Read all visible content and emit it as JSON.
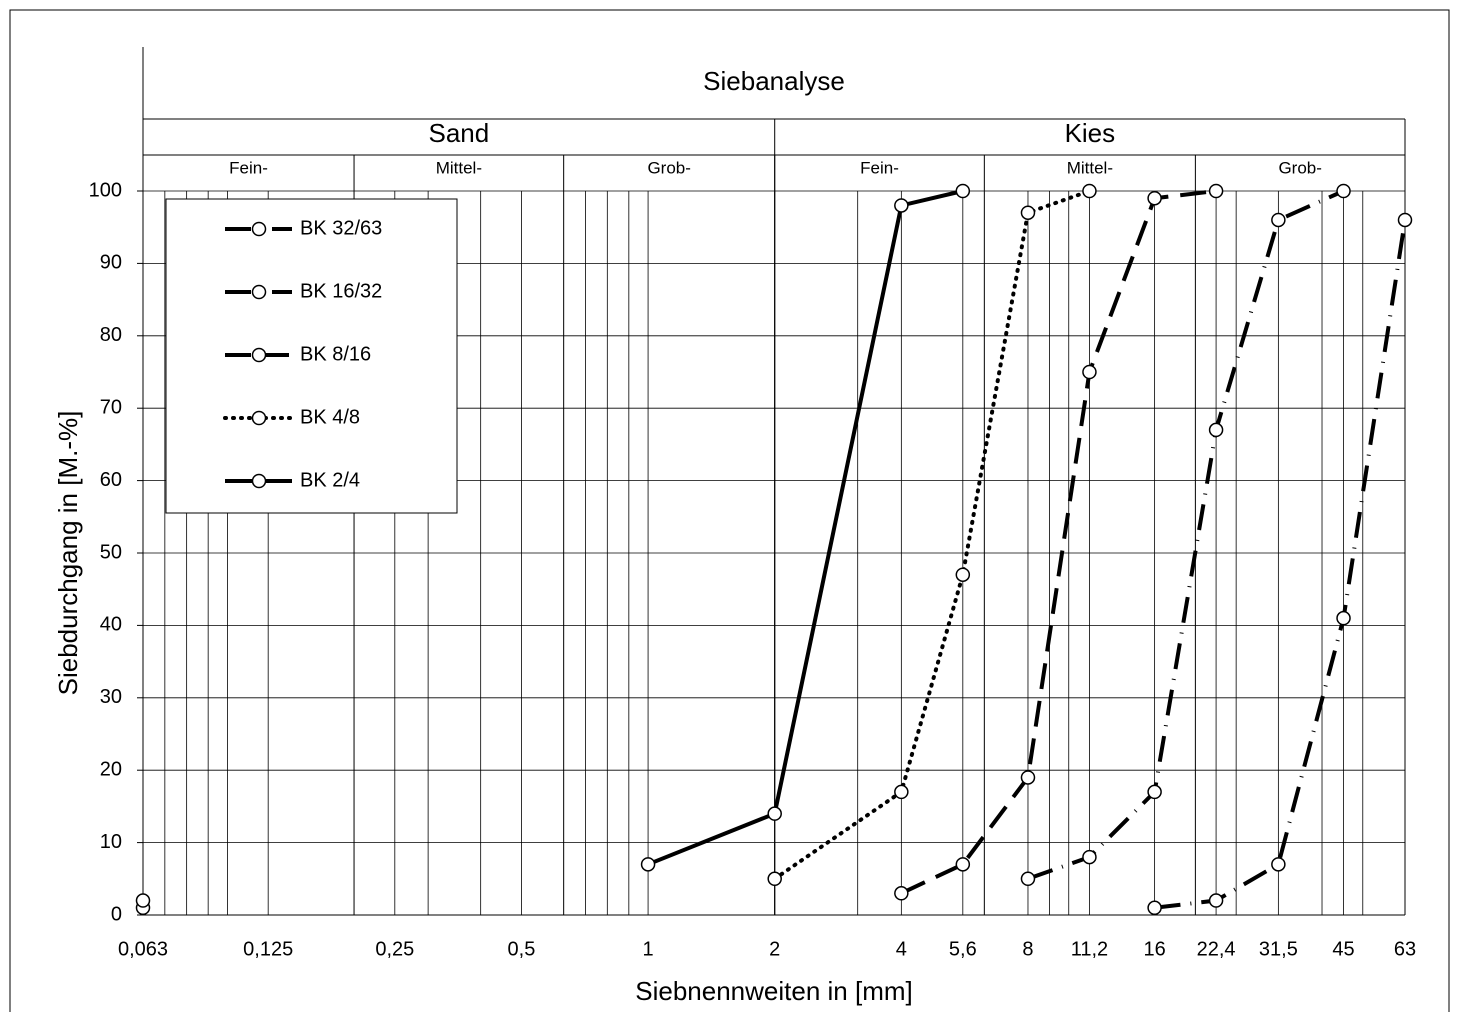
{
  "chart_data": {
    "type": "line",
    "title": "Siebanalyse",
    "xlabel": "Siebnennweiten in [mm]",
    "ylabel": "Siebdurchgang in [M.-%]",
    "xscale": "log",
    "xlim": [
      0.063,
      63
    ],
    "ylim": [
      0,
      100
    ],
    "xticks": [
      {
        "value": 0.063,
        "label": "0,063"
      },
      {
        "value": 0.125,
        "label": "0,125"
      },
      {
        "value": 0.25,
        "label": "0,25"
      },
      {
        "value": 0.5,
        "label": "0,5"
      },
      1,
      2,
      4,
      {
        "value": 5.6,
        "label": "5,6"
      },
      8,
      {
        "value": 11.2,
        "label": "11,2"
      },
      16,
      {
        "value": 22.4,
        "label": "22,4"
      },
      {
        "value": 31.5,
        "label": "31,5"
      },
      45,
      63
    ],
    "yticks": [
      0,
      10,
      20,
      30,
      40,
      50,
      60,
      70,
      80,
      90,
      100
    ],
    "xgrid_minor": [
      0.071,
      0.08,
      0.09,
      0.1,
      0.3,
      0.4,
      0.71,
      0.8,
      0.9,
      3.15,
      9,
      10,
      25,
      40,
      50
    ],
    "grid": true,
    "groups": [
      {
        "label": "Sand",
        "from": 0.063,
        "to": 2
      },
      {
        "label": "Kies",
        "from": 2,
        "to": 63
      }
    ],
    "fractions": [
      {
        "label": "Fein-",
        "from": 0.063,
        "to": 0.2
      },
      {
        "label": "Mittel-",
        "from": 0.2,
        "to": 0.63
      },
      {
        "label": "Grob-",
        "from": 0.63,
        "to": 2
      },
      {
        "label": "Fein-",
        "from": 2,
        "to": 6.3
      },
      {
        "label": "Mittel-",
        "from": 6.3,
        "to": 20
      },
      {
        "label": "Grob-",
        "from": 20,
        "to": 63
      }
    ],
    "legend": "upper left",
    "series": [
      {
        "name": "BK 32/63",
        "color": "#000000",
        "style": "dashdot",
        "x": [
          16,
          22.4,
          31.5,
          45,
          63
        ],
        "values": [
          1,
          2,
          7,
          41,
          96
        ]
      },
      {
        "name": "BK 16/32",
        "color": "#000000",
        "style": "dashdot",
        "x": [
          8,
          11.2,
          16,
          22.4,
          31.5,
          45
        ],
        "values": [
          5,
          8,
          17,
          67,
          96,
          100
        ]
      },
      {
        "name": "BK 8/16",
        "color": "#000000",
        "style": "dashed",
        "x": [
          4,
          5.6,
          8,
          11.2,
          16,
          22.4
        ],
        "values": [
          3,
          7,
          19,
          75,
          99,
          100
        ]
      },
      {
        "name": "BK 4/8",
        "color": "#000000",
        "style": "dotted",
        "x": [
          0.063,
          null,
          2,
          4,
          5.6,
          8,
          11.2
        ],
        "values": [
          1,
          null,
          5,
          17,
          47,
          97,
          100
        ]
      },
      {
        "name": "BK 2/4",
        "color": "#000000",
        "style": "solid",
        "x": [
          0.063,
          null,
          1,
          2,
          4,
          5.6
        ],
        "values": [
          2,
          null,
          7,
          14,
          98,
          100
        ]
      }
    ]
  }
}
